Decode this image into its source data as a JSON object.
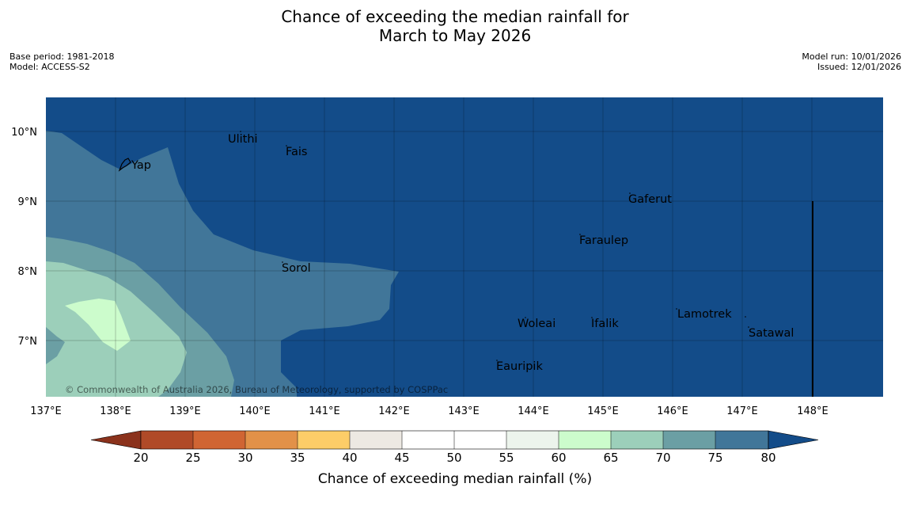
{
  "title": {
    "line1": "Chance of exceeding the median rainfall for",
    "line2": "March to May 2026"
  },
  "meta_left": {
    "base_period": "Base period: 1981-2018",
    "model": "Model: ACCESS-S2"
  },
  "meta_right": {
    "model_run": "Model run: 10/01/2026",
    "issued": "Issued: 12/01/2026"
  },
  "map": {
    "copyright": "© Commonwealth of Australia 2026, Bureau of Meteorology, supported by COSPPac",
    "lon_labels": [
      "137°E",
      "138°E",
      "139°E",
      "140°E",
      "141°E",
      "142°E",
      "143°E",
      "144°E",
      "145°E",
      "146°E",
      "147°E",
      "148°E"
    ],
    "lat_labels": [
      "10°N",
      "9°N",
      "8°N",
      "7°N"
    ],
    "places": [
      {
        "name": "Yap"
      },
      {
        "name": "Ulithi"
      },
      {
        "name": "Fais"
      },
      {
        "name": "Gaferut"
      },
      {
        "name": "Faraulep"
      },
      {
        "name": "Sorol"
      },
      {
        "name": "Woleai"
      },
      {
        "name": "Ifalik"
      },
      {
        "name": "Lamotrek"
      },
      {
        "name": "Satawal"
      },
      {
        "name": "Eauripik"
      }
    ]
  },
  "colorbar": {
    "label": "Chance of exceeding median rainfall (%)",
    "ticks": [
      "20",
      "25",
      "30",
      "35",
      "40",
      "45",
      "50",
      "55",
      "60",
      "65",
      "70",
      "75",
      "80"
    ],
    "colors": {
      "below20": "#8b321c",
      "b20_25": "#b04a28",
      "b25_30": "#d06533",
      "b30_35": "#e29148",
      "b35_40": "#fdcd68",
      "b40_45": "#ede9e3",
      "b45_50": "#ffffff",
      "b50_55": "#ffffff",
      "b55_60": "#ecf4ec",
      "b60_65": "#ccfccc",
      "b65_70": "#9ccfba",
      "b70_75": "#6b9fa4",
      "b75_80": "#417699",
      "above80": "#134c89"
    }
  }
}
